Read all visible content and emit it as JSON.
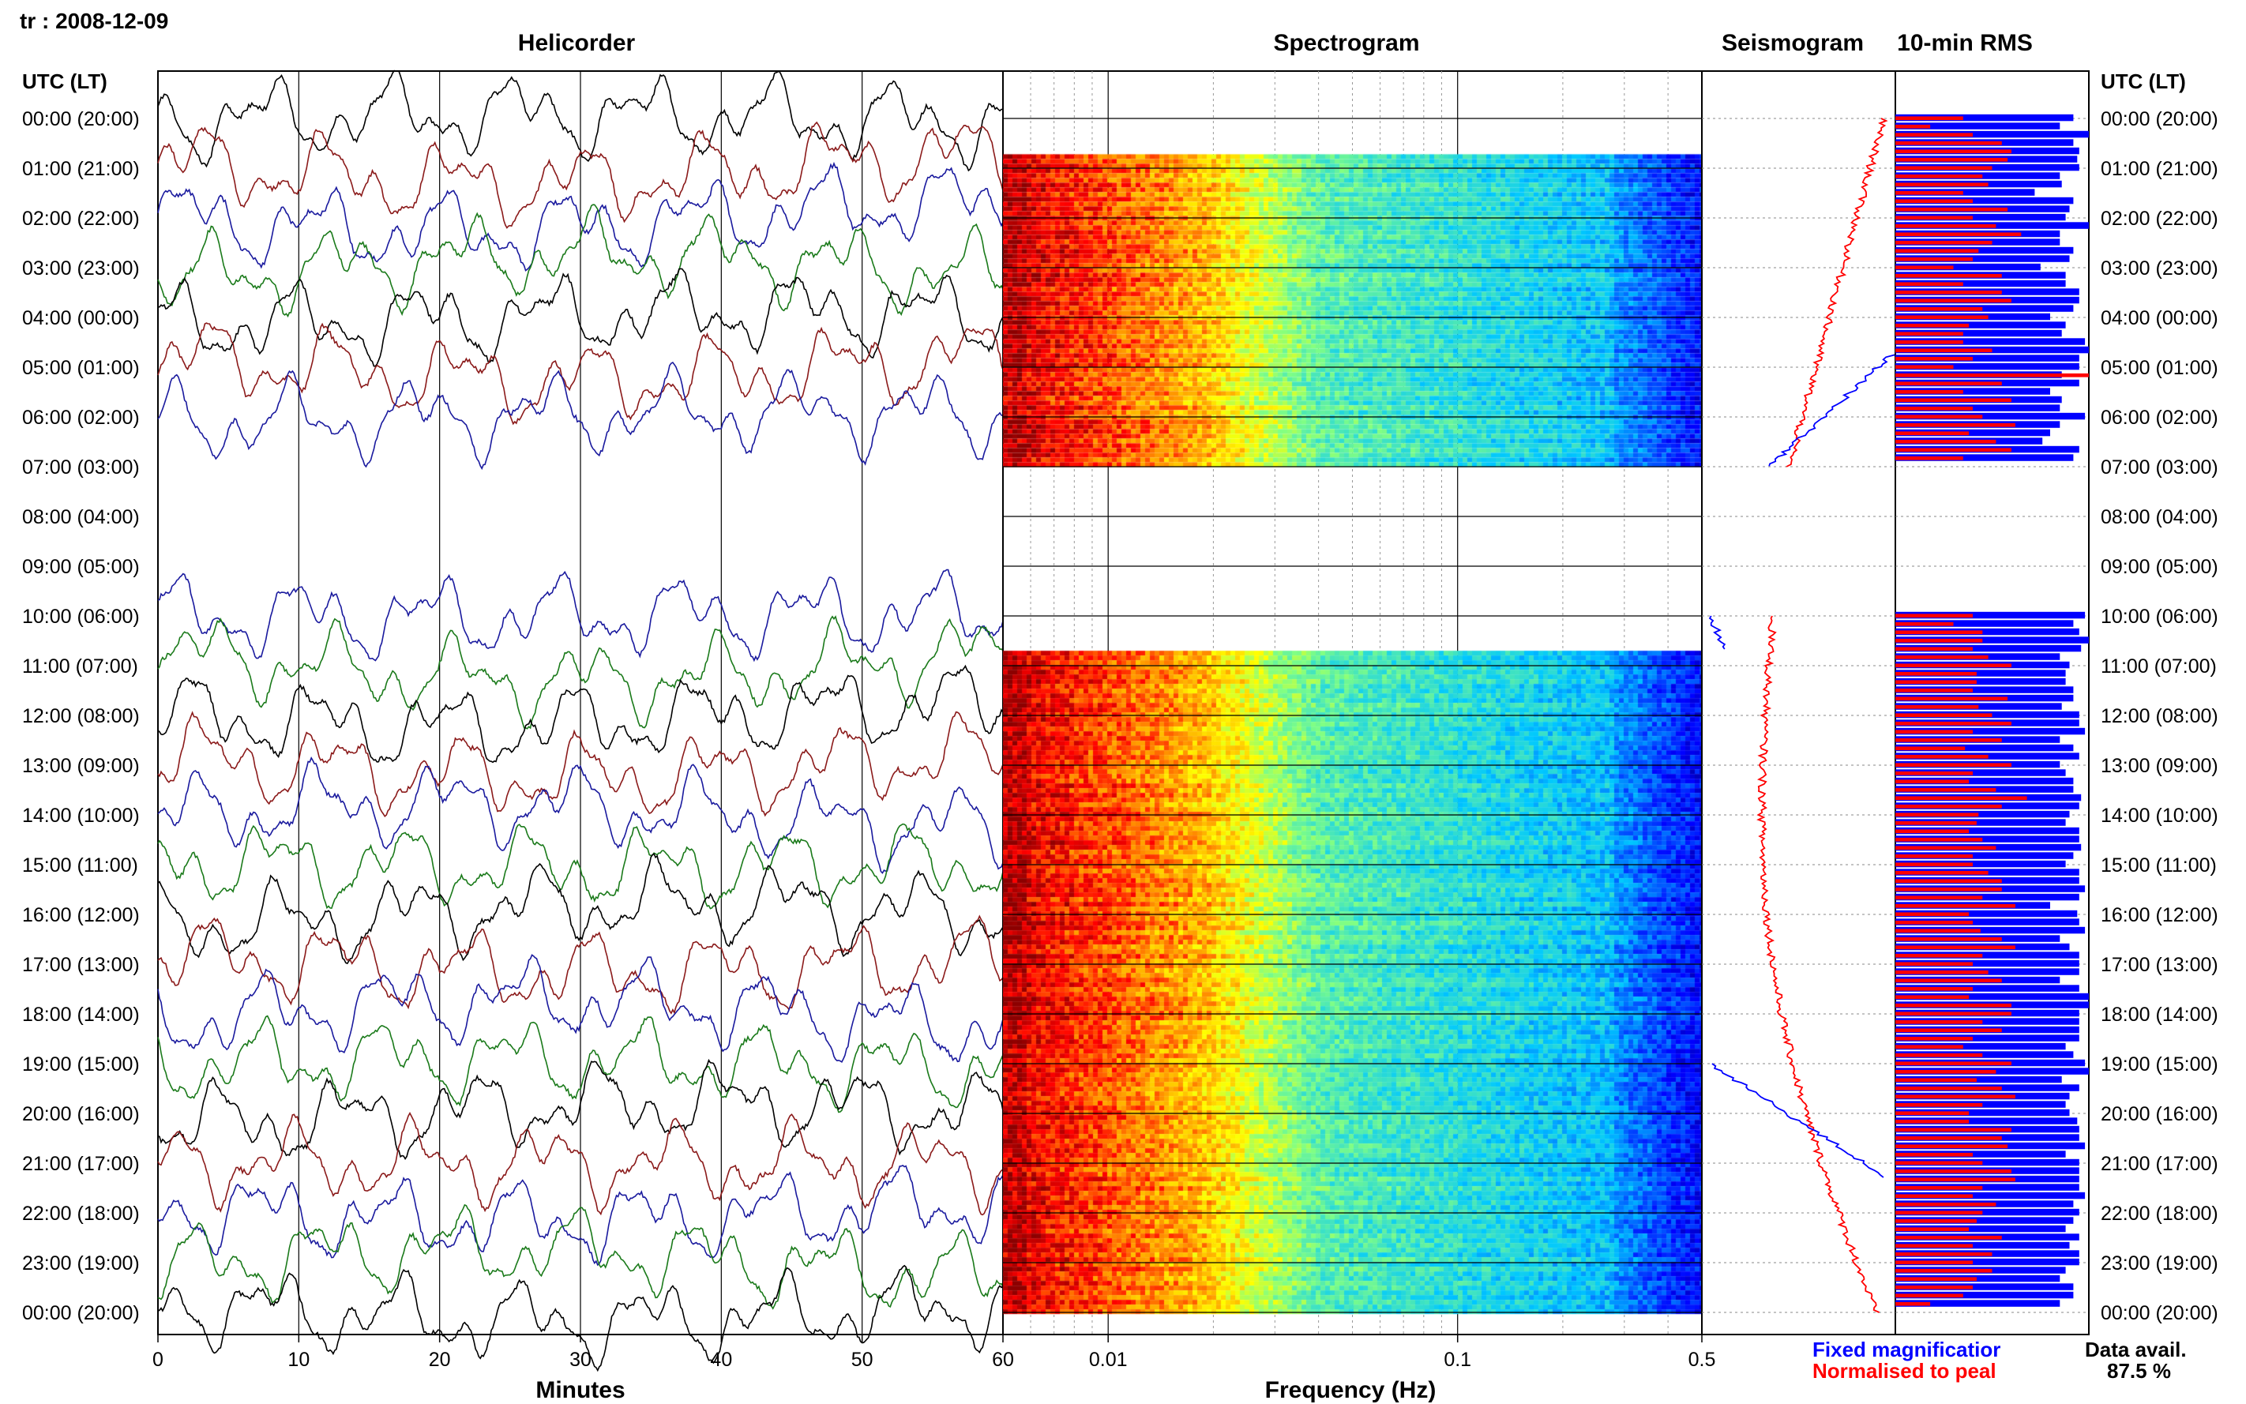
{
  "header": {
    "station_date": "tr : 2008-12-09"
  },
  "panels": {
    "helicorder": "Helicorder",
    "spectrogram": "Spectrogram",
    "seismogram": "Seismogram",
    "rms": "10-min RMS"
  },
  "axis": {
    "left_title": "UTC (LT)",
    "right_title": "UTC (LT)",
    "minutes_label": "Minutes",
    "frequency_label": "Frequency (Hz)",
    "minutes_ticks": [
      "0",
      "10",
      "20",
      "30",
      "40",
      "50",
      "60"
    ],
    "frequency_ticks": [
      "0.01",
      "0.1",
      "0.5"
    ]
  },
  "hours": [
    "00:00 (20:00)",
    "01:00 (21:00)",
    "02:00 (22:00)",
    "03:00 (23:00)",
    "04:00 (00:00)",
    "05:00 (01:00)",
    "06:00 (02:00)",
    "07:00 (03:00)",
    "08:00 (04:00)",
    "09:00 (05:00)",
    "10:00 (06:00)",
    "11:00 (07:00)",
    "12:00 (08:00)",
    "13:00 (09:00)",
    "14:00 (10:00)",
    "15:00 (11:00)",
    "16:00 (12:00)",
    "17:00 (13:00)",
    "18:00 (14:00)",
    "19:00 (15:00)",
    "20:00 (16:00)",
    "21:00 (17:00)",
    "22:00 (18:00)",
    "23:00 (19:00)",
    "00:00 (20:00)"
  ],
  "legend": {
    "fixed": "Fixed magnificatior",
    "normalised": "Normalised to peal",
    "data_avail_label": "Data avail.",
    "data_avail_value": "87.5 %"
  },
  "colors": {
    "trace_cycle": [
      "#000000",
      "#8b1a1a",
      "#1a1a9e",
      "#1a7a1a"
    ],
    "fixed": "#0000ff",
    "normalised": "#ff0000"
  },
  "chart_data": {
    "type": "helicorder",
    "date": "2008-12-09",
    "data_gaps_utc_hours": [
      [
        7,
        10
      ]
    ],
    "data_availability_percent": 87.5,
    "spectrogram_frequency_range_hz": [
      0.005,
      0.5
    ],
    "rms_fixed": [
      0.92,
      0.85,
      1.0,
      0.92,
      0.95,
      0.94,
      0.95,
      0.85,
      0.86,
      0.72,
      0.92,
      0.9,
      0.88,
      1.0,
      0.85,
      0.85,
      0.92,
      0.9,
      0.75,
      0.88,
      0.88,
      0.95,
      0.95,
      0.92,
      0.8,
      0.88,
      0.86,
      0.98,
      1.0,
      0.95,
      0.95,
      0.86,
      0.95,
      0.8,
      0.86,
      0.85,
      0.98,
      0.85,
      0.8,
      0.76,
      0.95,
      0.92,
      0.98,
      0.92,
      0.95,
      1.0,
      0.96,
      0.85,
      0.9,
      0.88,
      0.88,
      0.92,
      0.92,
      0.86,
      0.95,
      0.95,
      0.98,
      0.85,
      0.92,
      0.95,
      0.85,
      0.88,
      0.92,
      0.92,
      0.96,
      0.95,
      0.9,
      0.88,
      0.95,
      0.95,
      0.96,
      0.92,
      0.88,
      0.95,
      0.95,
      0.98,
      0.95,
      0.8,
      0.94,
      0.95,
      0.98,
      0.85,
      0.9,
      0.95,
      0.95,
      0.95,
      0.85,
      0.95,
      1.0,
      1.0,
      0.95,
      0.95,
      0.95,
      0.95,
      0.88,
      0.92,
      0.98,
      1.0,
      0.86,
      0.95,
      0.9,
      0.88,
      0.9,
      0.94,
      0.95,
      0.95,
      0.98,
      0.88,
      0.95,
      0.95,
      0.95,
      0.95,
      0.98,
      0.92,
      0.95,
      0.92,
      0.88,
      0.95,
      0.9,
      0.95,
      0.95,
      0.88,
      0.85,
      0.92
    ],
    "rms_normalised": [
      0.35,
      0.18,
      0.4,
      0.55,
      0.6,
      0.58,
      0.5,
      0.45,
      0.48,
      0.35,
      0.4,
      0.58,
      0.4,
      0.52,
      0.65,
      0.5,
      0.43,
      0.4,
      0.3,
      0.55,
      0.35,
      0.55,
      0.6,
      0.45,
      0.48,
      0.38,
      0.35,
      0.35,
      0.5,
      0.4,
      0.3,
      1.0,
      0.55,
      0.35,
      0.6,
      0.4,
      0.45,
      0.62,
      0.38,
      0.52,
      0.6,
      0.35,
      0.4,
      0.3,
      0.45,
      0.45,
      0.4,
      0.48,
      0.6,
      0.42,
      0.42,
      0.4,
      0.58,
      0.43,
      0.5,
      0.6,
      0.4,
      0.55,
      0.36,
      0.48,
      0.6,
      0.4,
      0.38,
      0.52,
      0.68,
      0.55,
      0.43,
      0.42,
      0.38,
      0.45,
      0.52,
      0.4,
      0.4,
      0.48,
      0.55,
      0.55,
      0.45,
      0.62,
      0.38,
      0.4,
      0.44,
      0.55,
      0.62,
      0.45,
      0.4,
      0.48,
      0.55,
      0.4,
      0.38,
      0.6,
      0.6,
      0.45,
      0.55,
      0.4,
      0.35,
      0.45,
      0.6,
      0.52,
      0.42,
      0.55,
      0.62,
      0.45,
      0.38,
      0.38,
      0.6,
      0.55,
      0.58,
      0.4,
      0.45,
      0.6,
      0.62,
      0.45,
      0.4,
      0.52,
      0.45,
      0.42,
      0.38,
      0.55,
      0.4,
      0.5,
      0.4,
      0.5,
      0.42,
      0.4
    ]
  }
}
